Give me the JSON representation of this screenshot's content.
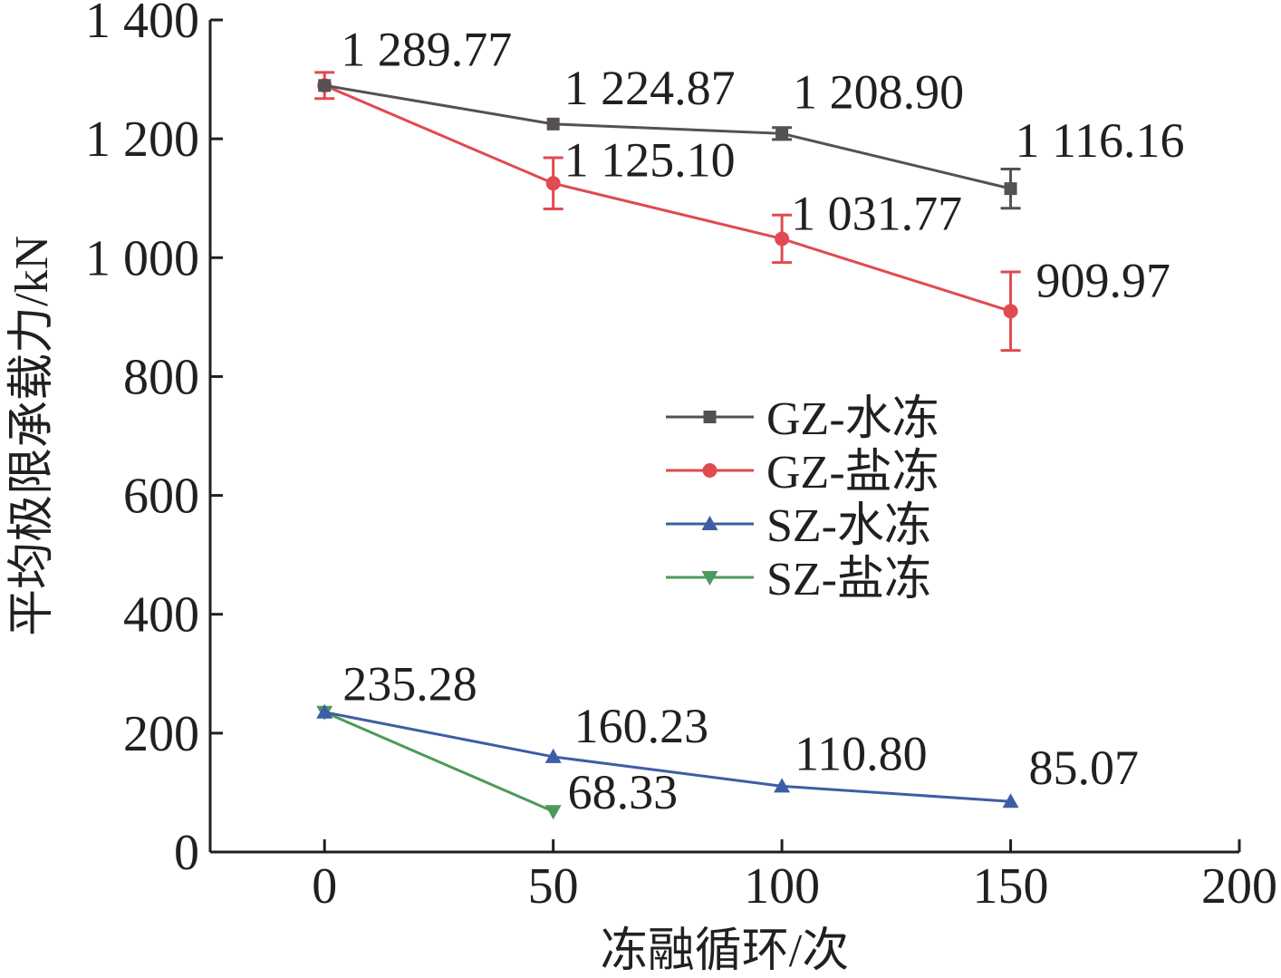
{
  "chart_data": {
    "type": "line",
    "xlabel": "冻融循环/次",
    "ylabel": "平均极限承载力/kN",
    "xlim": [
      -25,
      200
    ],
    "ylim": [
      0,
      1400
    ],
    "x_ticks": [
      "0",
      "50",
      "100",
      "150",
      "200"
    ],
    "x_tick_values": [
      0,
      50,
      100,
      150,
      200
    ],
    "y_ticks": [
      "0",
      "200",
      "400",
      "600",
      "800",
      "1 000",
      "1 200",
      "1 400"
    ],
    "y_tick_values": [
      0,
      200,
      400,
      600,
      800,
      1000,
      1200,
      1400
    ],
    "grid": false,
    "legend_position": "center-right",
    "series": [
      {
        "name": "GZ-水冻",
        "color": "#555152",
        "marker": "square",
        "x": [
          0,
          50,
          100,
          150
        ],
        "y": [
          1289.77,
          1224.87,
          1208.9,
          1116.16
        ],
        "error": [
          0,
          0,
          10,
          33
        ],
        "labels": [
          "",
          "1 224.87",
          "1 208.90",
          "1 116.16"
        ]
      },
      {
        "name": "GZ-盐冻",
        "color": "#e04a50",
        "marker": "circle",
        "x": [
          0,
          50,
          100,
          150
        ],
        "y": [
          1289.77,
          1125.1,
          1031.77,
          909.97
        ],
        "error": [
          22,
          43,
          40,
          66
        ],
        "labels": [
          "1 289.77",
          "1 125.10",
          "1 031.77",
          "909.97"
        ]
      },
      {
        "name": "SZ-水冻",
        "color": "#3d5ea6",
        "marker": "triangle-up",
        "x": [
          0,
          50,
          100,
          150
        ],
        "y": [
          235.28,
          160.23,
          110.8,
          85.07
        ],
        "error": [
          0,
          0,
          0,
          0
        ],
        "labels": [
          "235.28",
          "160.23",
          "110.80",
          "85.07"
        ]
      },
      {
        "name": "SZ-盐冻",
        "color": "#4c9a5b",
        "marker": "triangle-down",
        "x": [
          0,
          50
        ],
        "y": [
          235.28,
          68.33
        ],
        "error": [
          0,
          0
        ],
        "labels": [
          "",
          "68.33"
        ]
      }
    ]
  }
}
